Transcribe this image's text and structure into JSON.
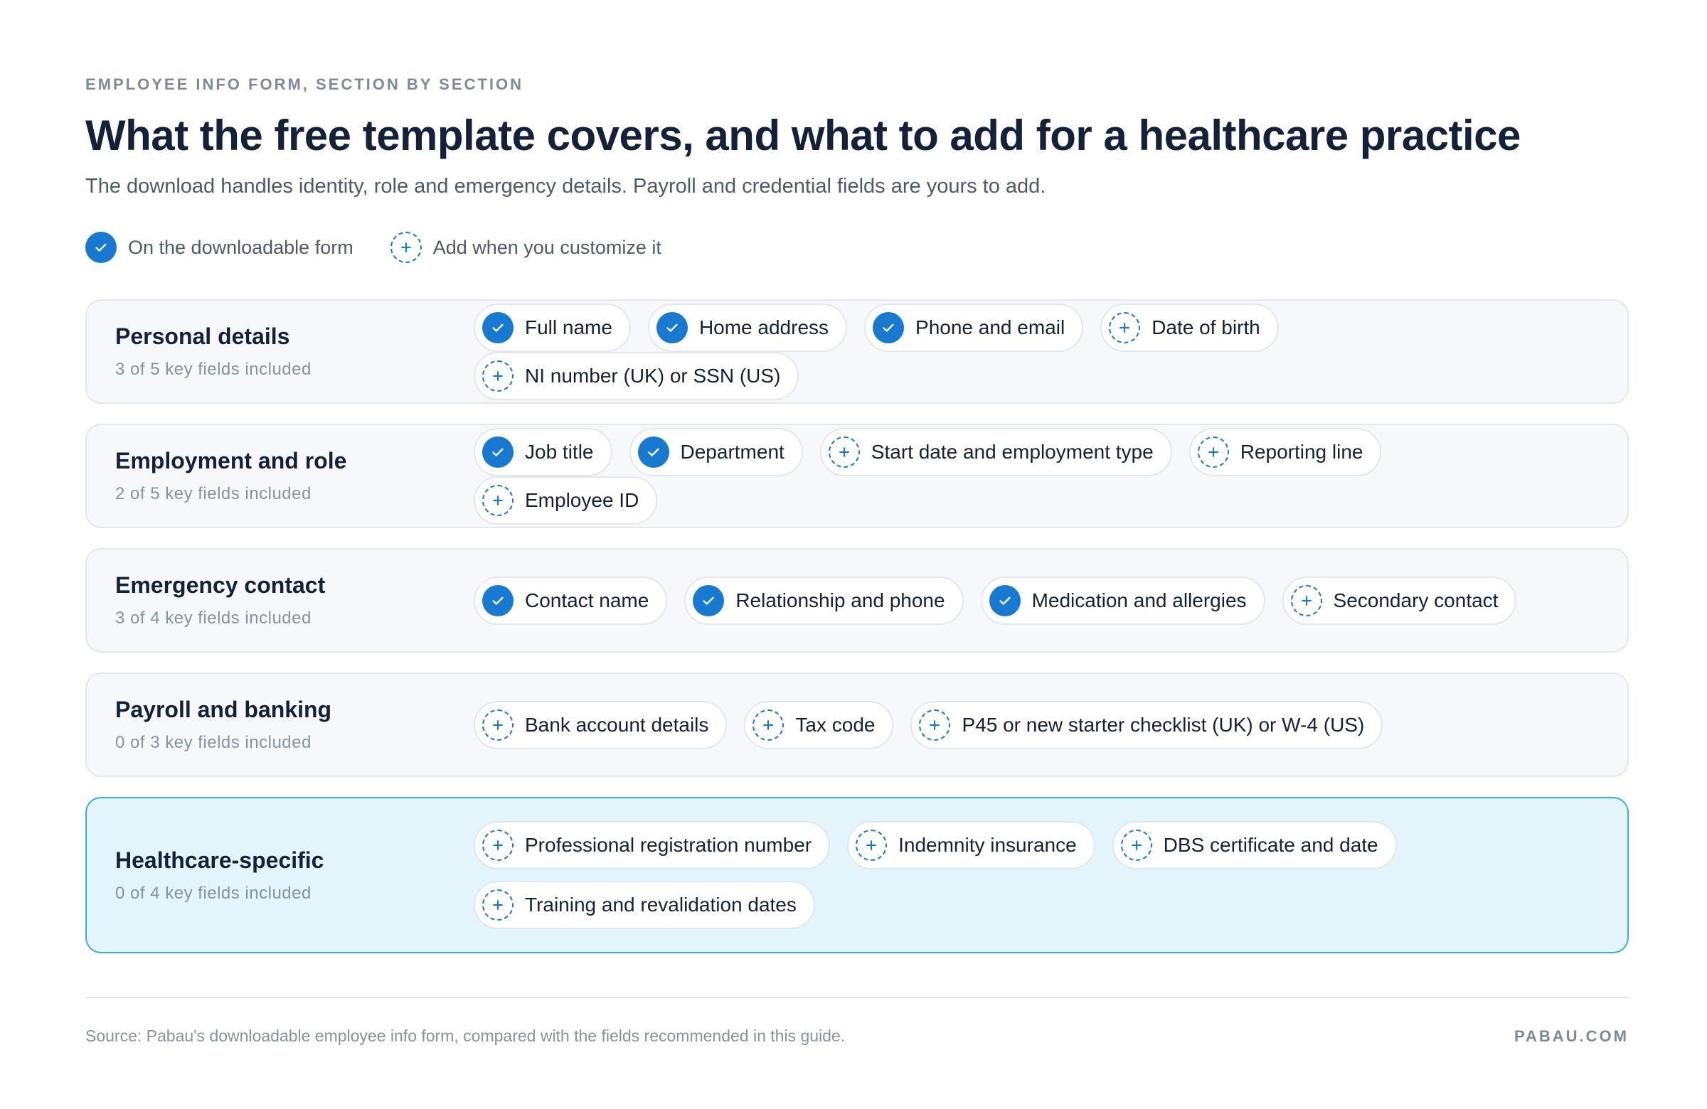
{
  "eyebrow": "EMPLOYEE INFO FORM, SECTION BY SECTION",
  "title": "What the free template covers, and what to add for a healthcare practice",
  "subtitle": "The download handles identity, role and emergency details. Payroll and credential fields are yours to add.",
  "legend": {
    "included_label": "On the downloadable form",
    "add_label": "Add when you customize it"
  },
  "colors": {
    "accent": "#1779d0",
    "highlight_bg": "#e3f4fb",
    "highlight_border": "#36b3cf",
    "section_bg": "#f6f8fb"
  },
  "icons": {
    "included": "check-circle-icon",
    "add": "plus-dashed-circle-icon"
  },
  "sections": [
    {
      "name": "Personal details",
      "count": "3 of 5 key fields included",
      "fields": [
        {
          "label": "Full name",
          "included": true
        },
        {
          "label": "Home address",
          "included": true
        },
        {
          "label": "Phone and email",
          "included": true
        },
        {
          "label": "Date of birth",
          "included": false
        },
        {
          "label": "NI number (UK) or SSN (US)",
          "included": false
        }
      ]
    },
    {
      "name": "Employment and role",
      "count": "2 of 5 key fields included",
      "fields": [
        {
          "label": "Job title",
          "included": true
        },
        {
          "label": "Department",
          "included": true
        },
        {
          "label": "Start date and employment type",
          "included": false
        },
        {
          "label": "Reporting line",
          "included": false
        },
        {
          "label": "Employee ID",
          "included": false
        }
      ]
    },
    {
      "name": "Emergency contact",
      "count": "3 of 4 key fields included",
      "fields": [
        {
          "label": "Contact name",
          "included": true
        },
        {
          "label": "Relationship and phone",
          "included": true
        },
        {
          "label": "Medication and allergies",
          "included": true
        },
        {
          "label": "Secondary contact",
          "included": false
        }
      ]
    },
    {
      "name": "Payroll and banking",
      "count": "0 of 3 key fields included",
      "fields": [
        {
          "label": "Bank account details",
          "included": false
        },
        {
          "label": "Tax code",
          "included": false
        },
        {
          "label": "P45 or new starter checklist (UK) or W-4 (US)",
          "included": false
        }
      ]
    },
    {
      "name": "Healthcare-specific",
      "count": "0 of 4 key fields included",
      "highlight": true,
      "fields": [
        {
          "label": "Professional registration number",
          "included": false
        },
        {
          "label": "Indemnity insurance",
          "included": false
        },
        {
          "label": "DBS certificate and date",
          "included": false
        },
        {
          "label": "Training and revalidation dates",
          "included": false
        }
      ]
    }
  ],
  "footer": {
    "source": "Source: Pabau's downloadable employee info form, compared with the fields recommended in this guide.",
    "brand": "PABAU.COM"
  }
}
